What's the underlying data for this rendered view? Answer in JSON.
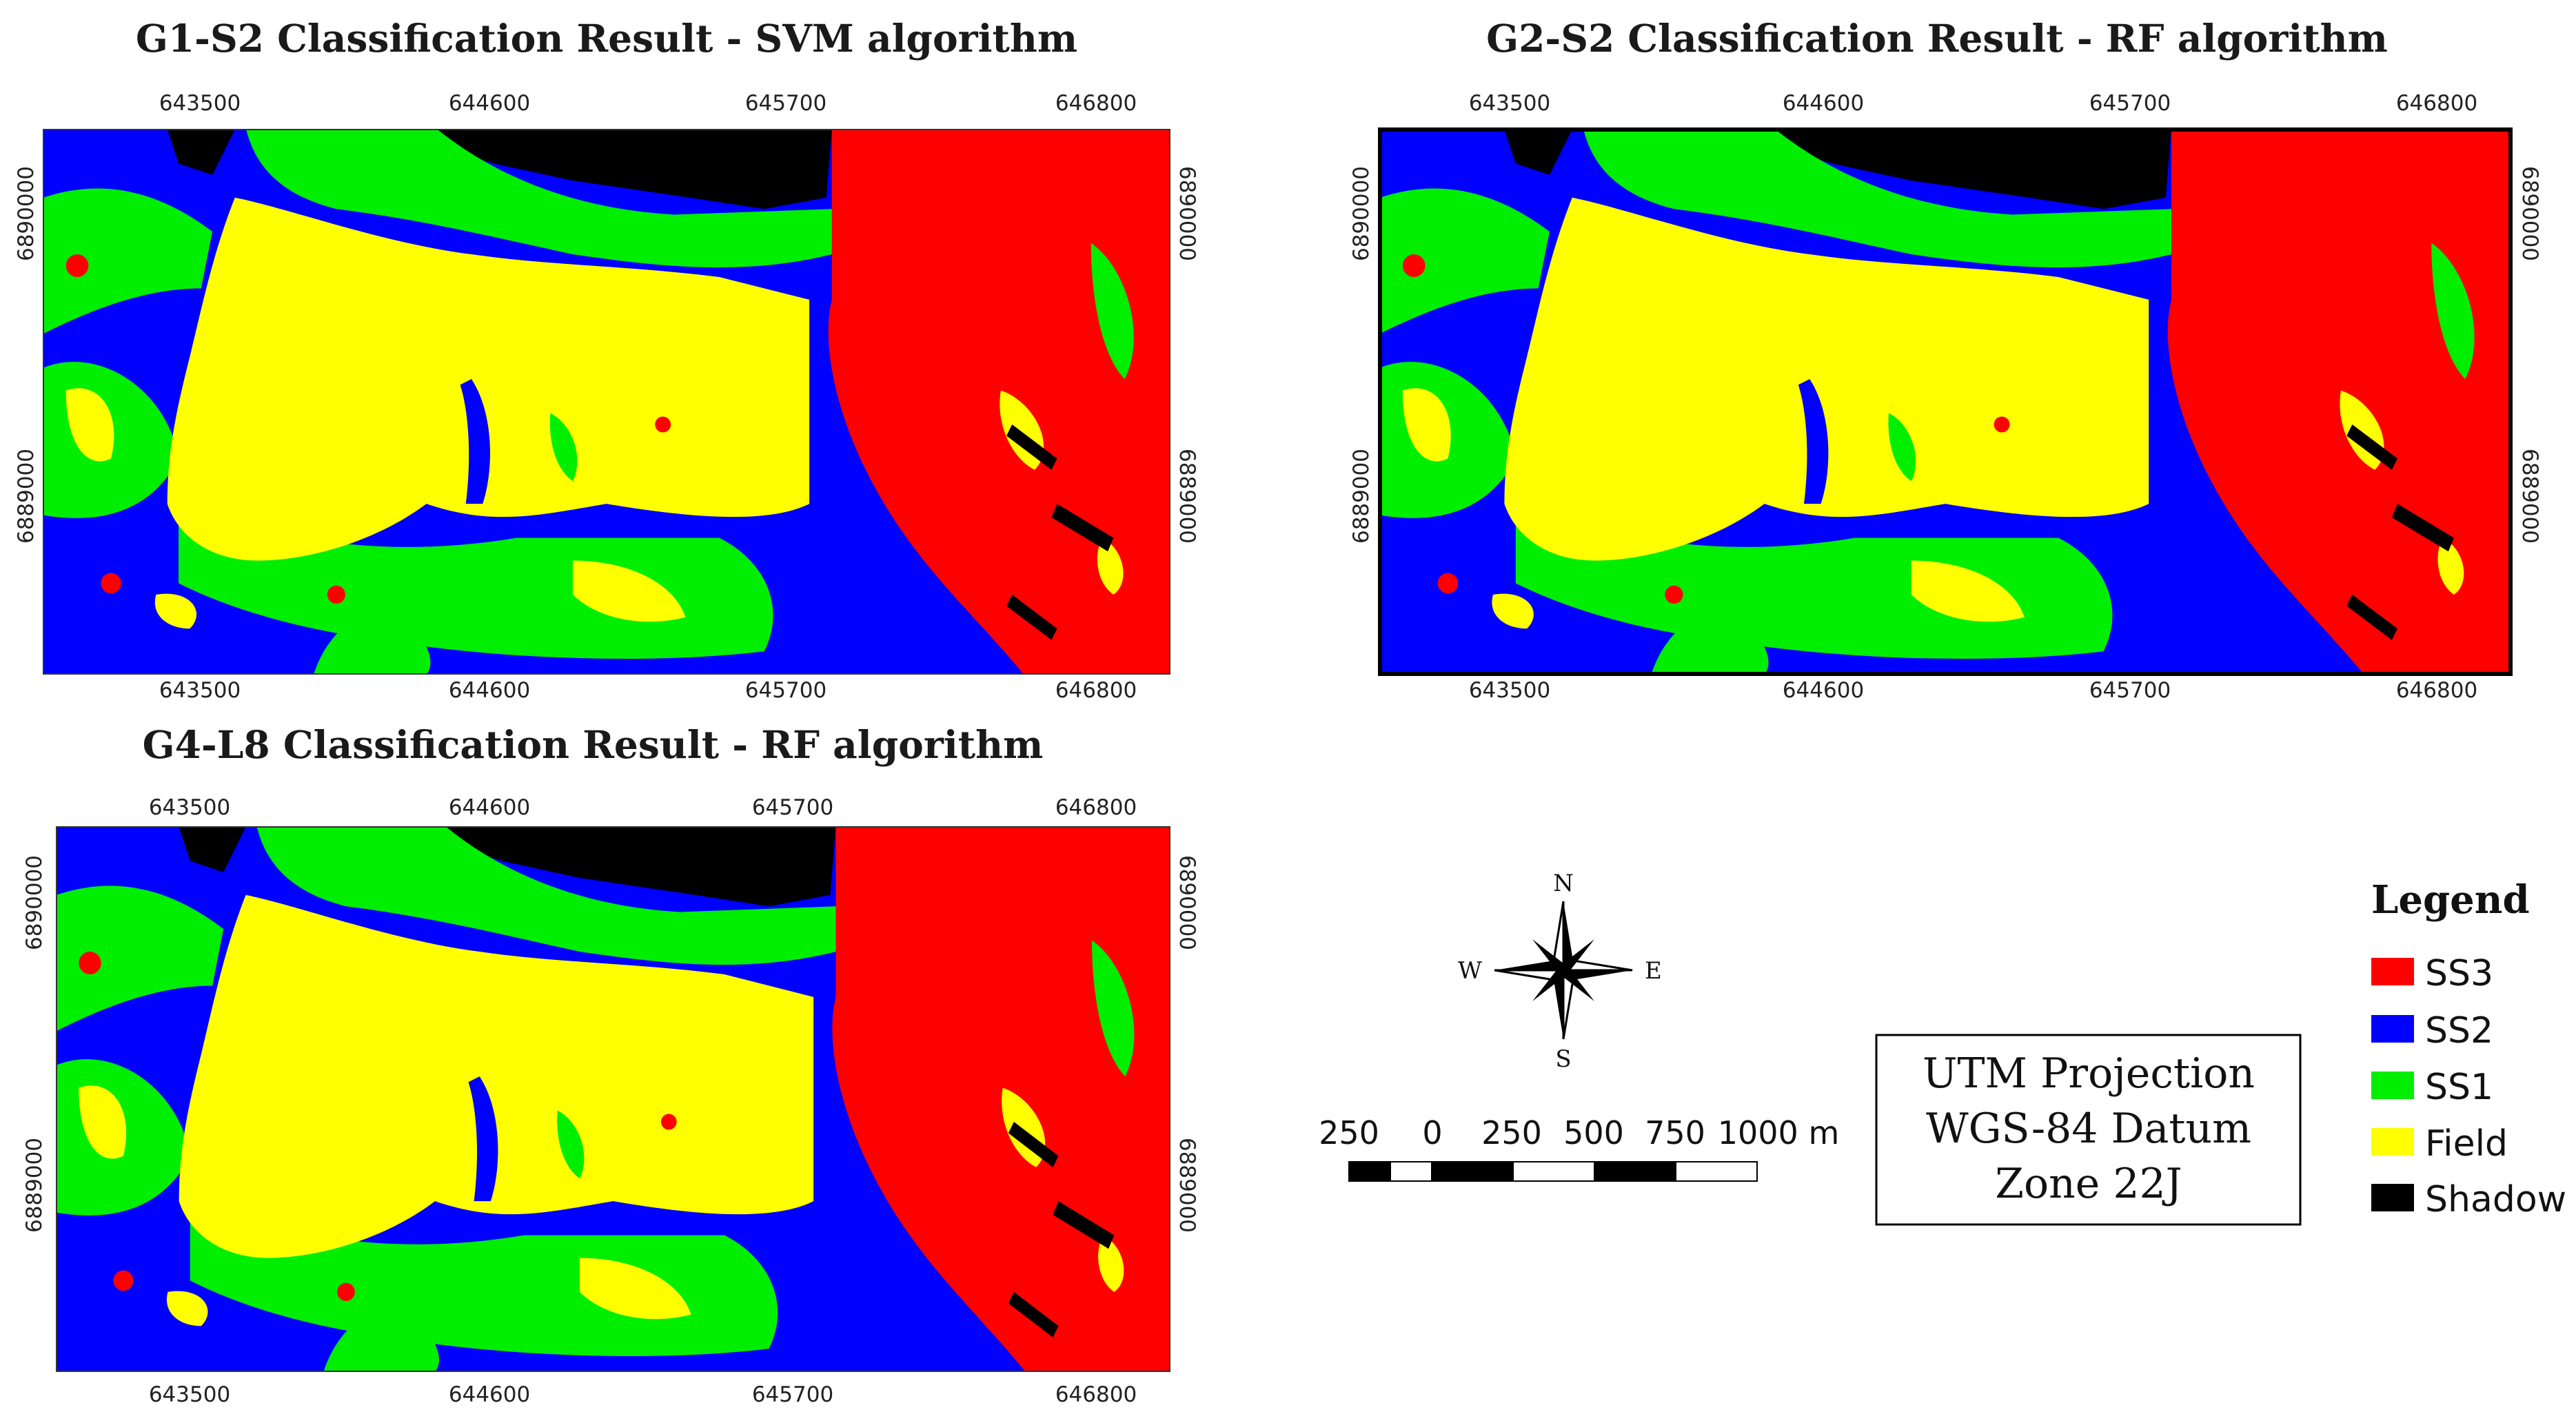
{
  "panels": [
    {
      "title": "G1-S2 Classification Result - SVM algorithm",
      "x_ticks": [
        "643500",
        "644600",
        "645700",
        "646800"
      ],
      "y_ticks": [
        "6890000",
        "6889000"
      ]
    },
    {
      "title": "G2-S2 Classification Result - RF algorithm",
      "x_ticks": [
        "643500",
        "644600",
        "645700",
        "646800"
      ],
      "y_ticks": [
        "6890000",
        "6889000"
      ]
    },
    {
      "title": "G4-L8 Classification Result - RF algorithm",
      "x_ticks": [
        "643500",
        "644600",
        "645700",
        "646800"
      ],
      "y_ticks": [
        "6890000",
        "6889000"
      ]
    }
  ],
  "compass": {
    "n": "N",
    "s": "S",
    "e": "E",
    "w": "W"
  },
  "scale_bar": {
    "labels": [
      "250",
      "0",
      "250",
      "500",
      "750",
      "1000 m"
    ]
  },
  "projection": {
    "line1": "UTM Projection",
    "line2": "WGS-84 Datum",
    "line3": "Zone 22J"
  },
  "legend": {
    "title": "Legend",
    "items": [
      {
        "label": "SS3",
        "color": "#ff0000"
      },
      {
        "label": "SS2",
        "color": "#0000ff"
      },
      {
        "label": "SS1",
        "color": "#00ee00"
      },
      {
        "label": "Field",
        "color": "#ffff00"
      },
      {
        "label": "Shadow",
        "color": "#000000"
      }
    ]
  },
  "class_colors": {
    "ss3": "#ff0000",
    "ss2": "#0000ff",
    "ss1": "#00ee00",
    "field": "#ffff00",
    "shadow": "#000000"
  }
}
